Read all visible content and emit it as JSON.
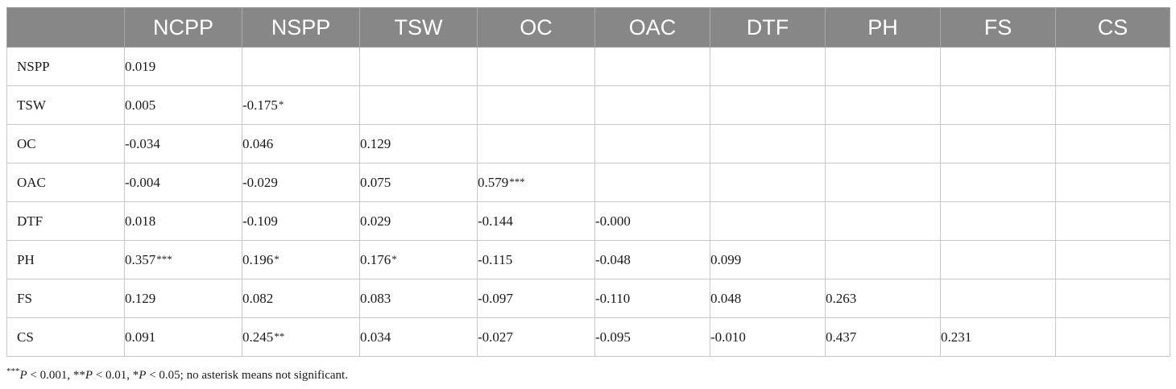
{
  "table": {
    "columns": [
      "",
      "NCPP",
      "NSPP",
      "TSW",
      "OC",
      "OAC",
      "DTF",
      "PH",
      "FS",
      "CS"
    ],
    "rows": [
      {
        "label": "NSPP",
        "cells": [
          "0.019",
          "",
          "",
          "",
          "",
          "",
          "",
          "",
          ""
        ],
        "sig": [
          "",
          "",
          "",
          "",
          "",
          "",
          "",
          "",
          ""
        ]
      },
      {
        "label": "TSW",
        "cells": [
          "0.005",
          "-0.175",
          "",
          "",
          "",
          "",
          "",
          "",
          ""
        ],
        "sig": [
          "",
          "*",
          "",
          "",
          "",
          "",
          "",
          "",
          ""
        ]
      },
      {
        "label": "OC",
        "cells": [
          "-0.034",
          "0.046",
          "0.129",
          "",
          "",
          "",
          "",
          "",
          ""
        ],
        "sig": [
          "",
          "",
          "",
          "",
          "",
          "",
          "",
          "",
          ""
        ]
      },
      {
        "label": "OAC",
        "cells": [
          "-0.004",
          "-0.029",
          "0.075",
          "0.579",
          "",
          "",
          "",
          "",
          ""
        ],
        "sig": [
          "",
          "",
          "",
          "***",
          "",
          "",
          "",
          "",
          ""
        ]
      },
      {
        "label": "DTF",
        "cells": [
          "0.018",
          "-0.109",
          "0.029",
          "-0.144",
          "-0.000",
          "",
          "",
          "",
          ""
        ],
        "sig": [
          "",
          "",
          "",
          "",
          "",
          "",
          "",
          "",
          ""
        ]
      },
      {
        "label": "PH",
        "cells": [
          "0.357",
          "0.196",
          "0.176",
          "-0.115",
          "-0.048",
          "0.099",
          "",
          "",
          ""
        ],
        "sig": [
          "***",
          "*",
          "*",
          "",
          "",
          "",
          "",
          "",
          ""
        ]
      },
      {
        "label": "FS",
        "cells": [
          "0.129",
          "0.082",
          "0.083",
          "-0.097",
          "-0.110",
          "0.048",
          "0.263",
          "",
          ""
        ],
        "sig": [
          "",
          "",
          "",
          "",
          "",
          "",
          "",
          "",
          ""
        ]
      },
      {
        "label": "CS",
        "cells": [
          "0.091",
          "0.245",
          "0.034",
          "-0.027",
          "-0.095",
          "-0.010",
          "0.437",
          "0.231",
          ""
        ],
        "sig": [
          "",
          "**",
          "",
          "",
          "",
          "",
          "",
          "",
          ""
        ]
      }
    ]
  },
  "footnote": {
    "part1": "***",
    "p1": "P",
    "part2": " < 0.001, **",
    "p2": "P",
    "part3": " < 0.01, *",
    "p3": "P",
    "part4": " < 0.05; no asterisk means not significant."
  },
  "colors": {
    "header_bg": "#878787",
    "header_text": "#ffffff",
    "grid": "#c8c8c8"
  }
}
